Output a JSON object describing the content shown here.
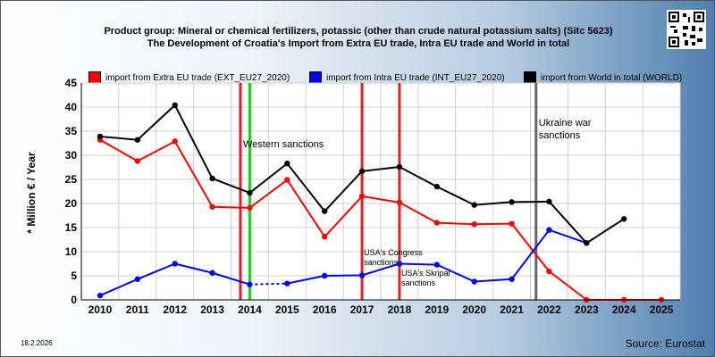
{
  "header": {
    "title_line1": "Product group: Mineral or chemical fertilizers, potassic (other than crude natural potassium salts) (Sitc 5623)",
    "title_line2": "The Development of Croatia's Import from Extra EU trade, Intra EU trade and World in total"
  },
  "footer": {
    "date": "18.2.2026",
    "source": "Source: Eurostat"
  },
  "colors": {
    "extra": "#ff0000",
    "intra": "#0000ff",
    "world": "#000000",
    "event_red": "#e02020",
    "event_green": "#22cc22",
    "event_gray": "#666666"
  },
  "chart_data": {
    "type": "line",
    "ylabel": "* Million € / Year",
    "ylim": [
      0,
      45
    ],
    "yticks": [
      0,
      5,
      10,
      15,
      20,
      25,
      30,
      35,
      40,
      45
    ],
    "categories": [
      "2010",
      "2011",
      "2012",
      "2013",
      "2014",
      "2015",
      "2016",
      "2017",
      "2018",
      "2019",
      "2020",
      "2021",
      "2022",
      "2023",
      "2024",
      "2025"
    ],
    "grid": true,
    "legend_position": "top",
    "series": [
      {
        "key": "extra",
        "name": "import from Extra EU trade (EXT_EU27_2020)",
        "values": [
          33.2,
          28.8,
          32.9,
          19.3,
          19.1,
          24.9,
          13.1,
          21.5,
          20.2,
          16.0,
          15.7,
          15.8,
          5.9,
          0.0,
          0.0,
          0.0
        ]
      },
      {
        "key": "intra",
        "name": "import from Intra EU trade (INT_EU27_2020)",
        "values": [
          0.9,
          4.3,
          7.5,
          5.6,
          3.2,
          3.4,
          5.0,
          5.1,
          7.5,
          7.3,
          3.8,
          4.3,
          14.5,
          11.8,
          null,
          null
        ]
      },
      {
        "key": "world",
        "name": "import from World in total (WORLD)",
        "values": [
          33.9,
          33.2,
          40.4,
          25.2,
          22.2,
          28.3,
          18.4,
          26.7,
          27.6,
          23.5,
          19.7,
          20.3,
          20.4,
          11.8,
          16.8,
          null
        ]
      }
    ],
    "events": [
      {
        "x": 2013.75,
        "color": "event_red",
        "label": ""
      },
      {
        "x": 2014.0,
        "color": "event_green",
        "label": "Western sanctions"
      },
      {
        "x": 2017.0,
        "color": "event_red",
        "label": "USA's Congress sanctions"
      },
      {
        "x": 2018.0,
        "color": "event_red",
        "label": "USA's Skripal sanctions"
      },
      {
        "x": 2021.65,
        "color": "event_gray",
        "label": "Ukraine war sanctions"
      }
    ],
    "event_labels": {
      "western": "Western sanctions",
      "congress_1": "USA's Congress",
      "congress_2": "sanctions",
      "skripal_1": "USA's Skripal",
      "skripal_2": "sanctions",
      "ukraine_1": "Ukraine war",
      "ukraine_2": "sanctions"
    }
  }
}
